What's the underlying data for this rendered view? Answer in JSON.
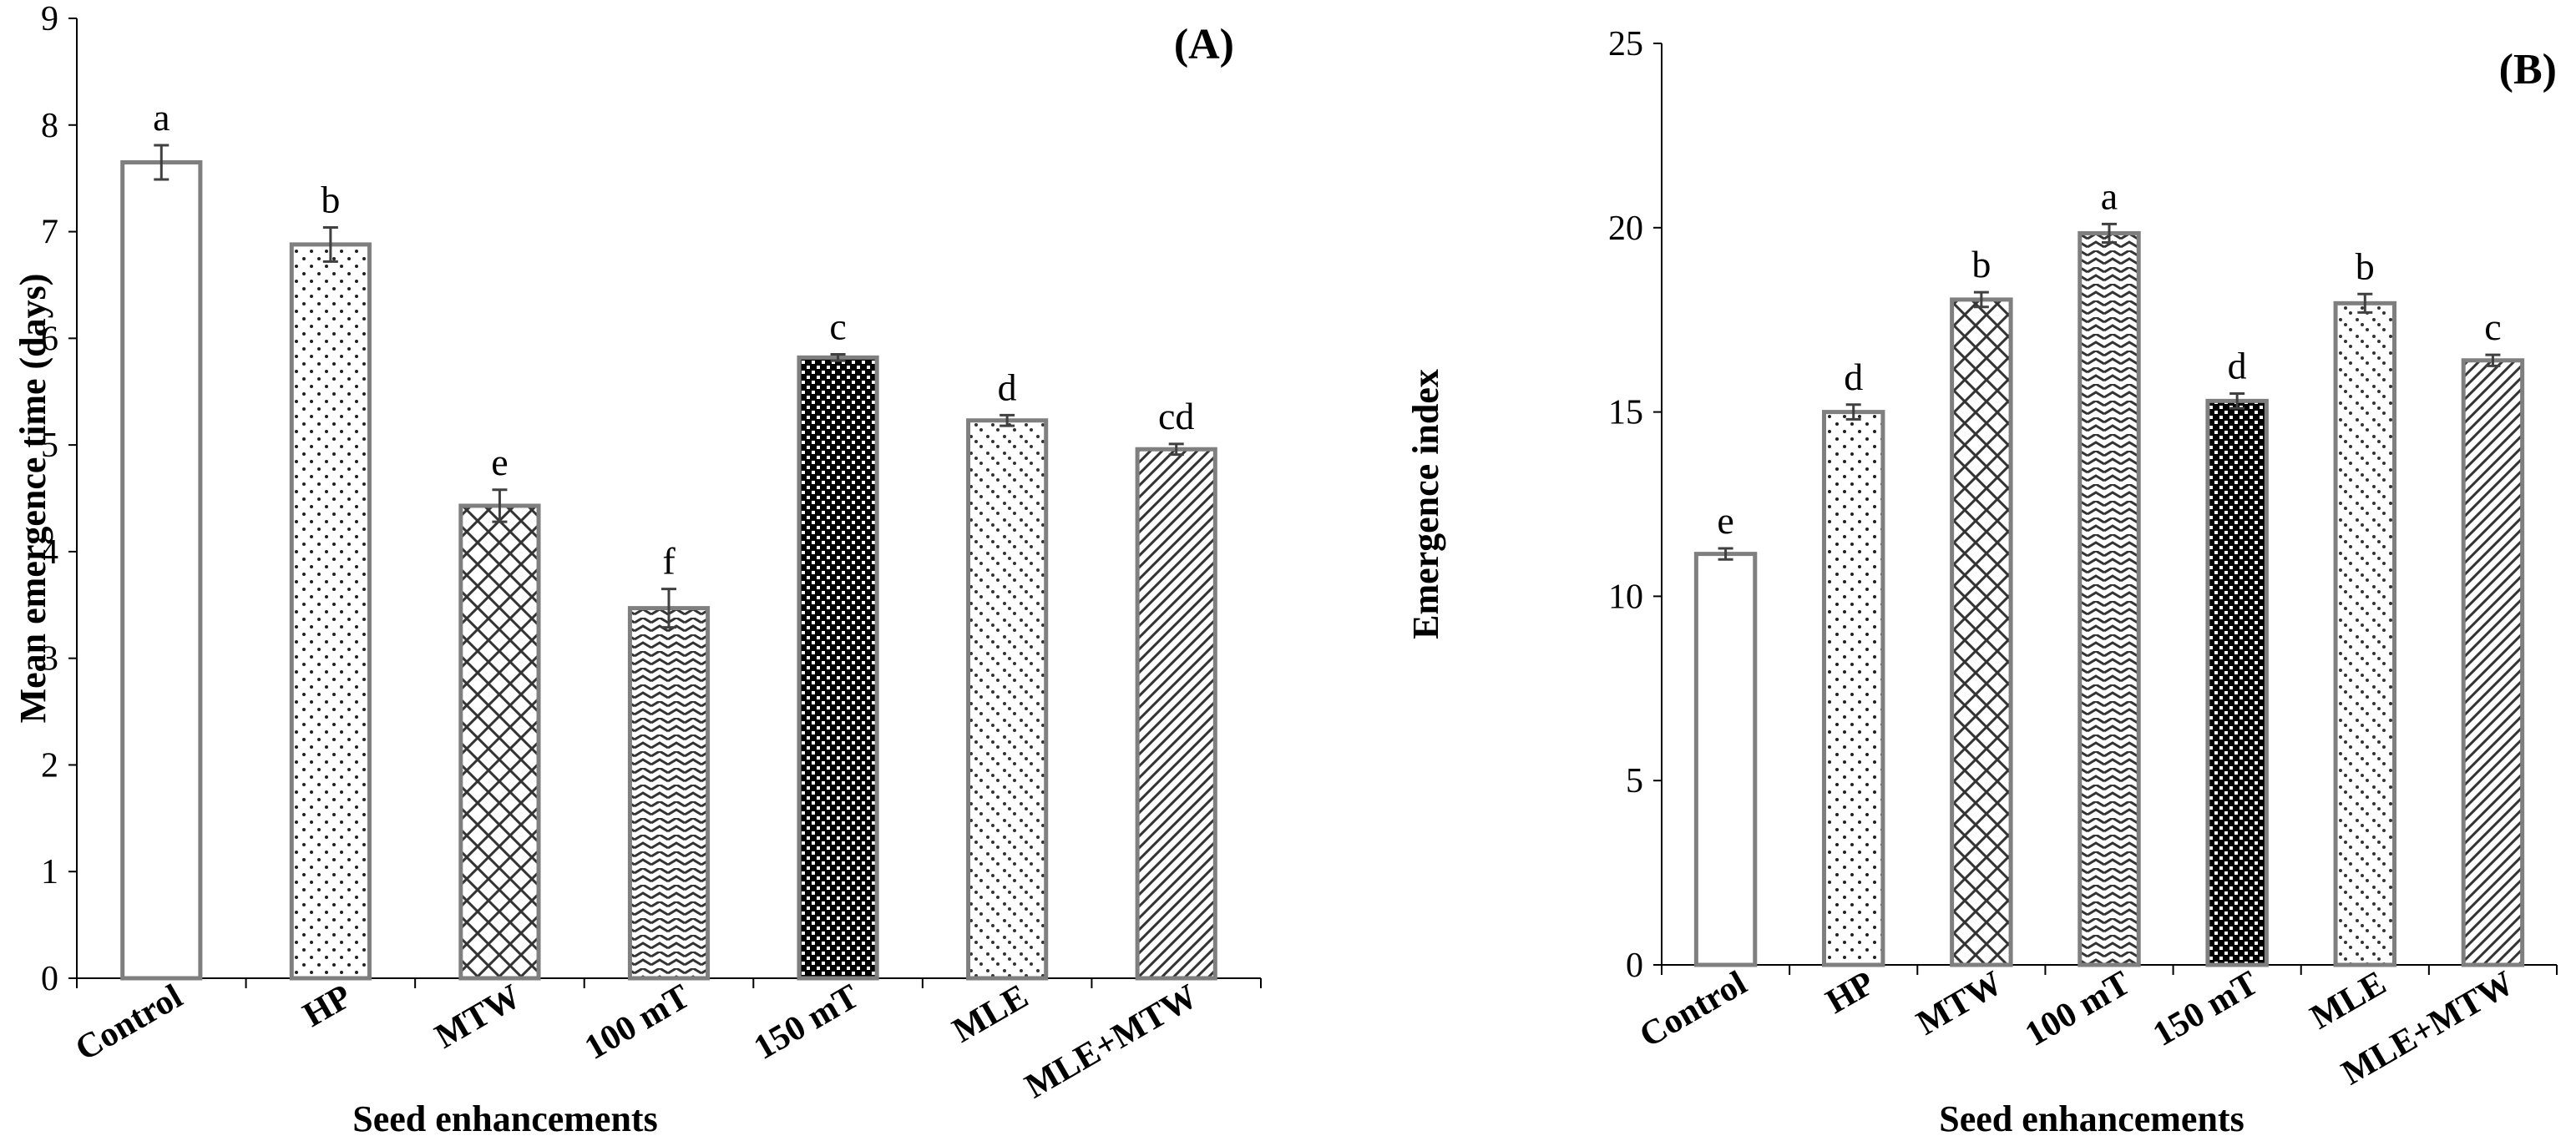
{
  "chart_data": [
    {
      "type": "bar",
      "panel_label": "(A)",
      "title": "",
      "xlabel": "Seed enhancements",
      "ylabel": "Mean emergence time (days)",
      "ylim": [
        0,
        9
      ],
      "yticks": [
        "0",
        "1",
        "2",
        "3",
        "4",
        "5",
        "6",
        "7",
        "8",
        "9"
      ],
      "categories": [
        "Control",
        "HP",
        "MTW",
        "100 mT",
        "150 mT",
        "MLE",
        "MLE+MTW"
      ],
      "values": [
        7.65,
        6.88,
        4.43,
        3.47,
        5.82,
        5.23,
        4.96
      ],
      "errors": [
        0.16,
        0.16,
        0.15,
        0.18,
        0.03,
        0.05,
        0.05
      ],
      "letters": [
        "a",
        "b",
        "e",
        "f",
        "c",
        "d",
        "cd"
      ],
      "patterns": [
        "none",
        "dots",
        "crosshatch",
        "zigzag",
        "checker",
        "diag-dots",
        "diagonal"
      ]
    },
    {
      "type": "bar",
      "panel_label": "(B)",
      "title": "",
      "xlabel": "Seed enhancements",
      "ylabel": "Emergence index",
      "ylim": [
        0,
        25
      ],
      "yticks": [
        "0",
        "5",
        "10",
        "15",
        "20",
        "25"
      ],
      "categories": [
        "Control",
        "HP",
        "MTW",
        "100 mT",
        "150 mT",
        "MLE",
        "MLE+MTW"
      ],
      "values": [
        11.15,
        15.0,
        18.05,
        19.85,
        15.3,
        17.95,
        16.4
      ],
      "errors": [
        0.15,
        0.2,
        0.2,
        0.25,
        0.2,
        0.25,
        0.15
      ],
      "letters": [
        "e",
        "d",
        "b",
        "a",
        "d",
        "b",
        "c"
      ],
      "patterns": [
        "none",
        "dots",
        "crosshatch",
        "zigzag",
        "checker",
        "diag-dots",
        "diagonal"
      ]
    }
  ]
}
